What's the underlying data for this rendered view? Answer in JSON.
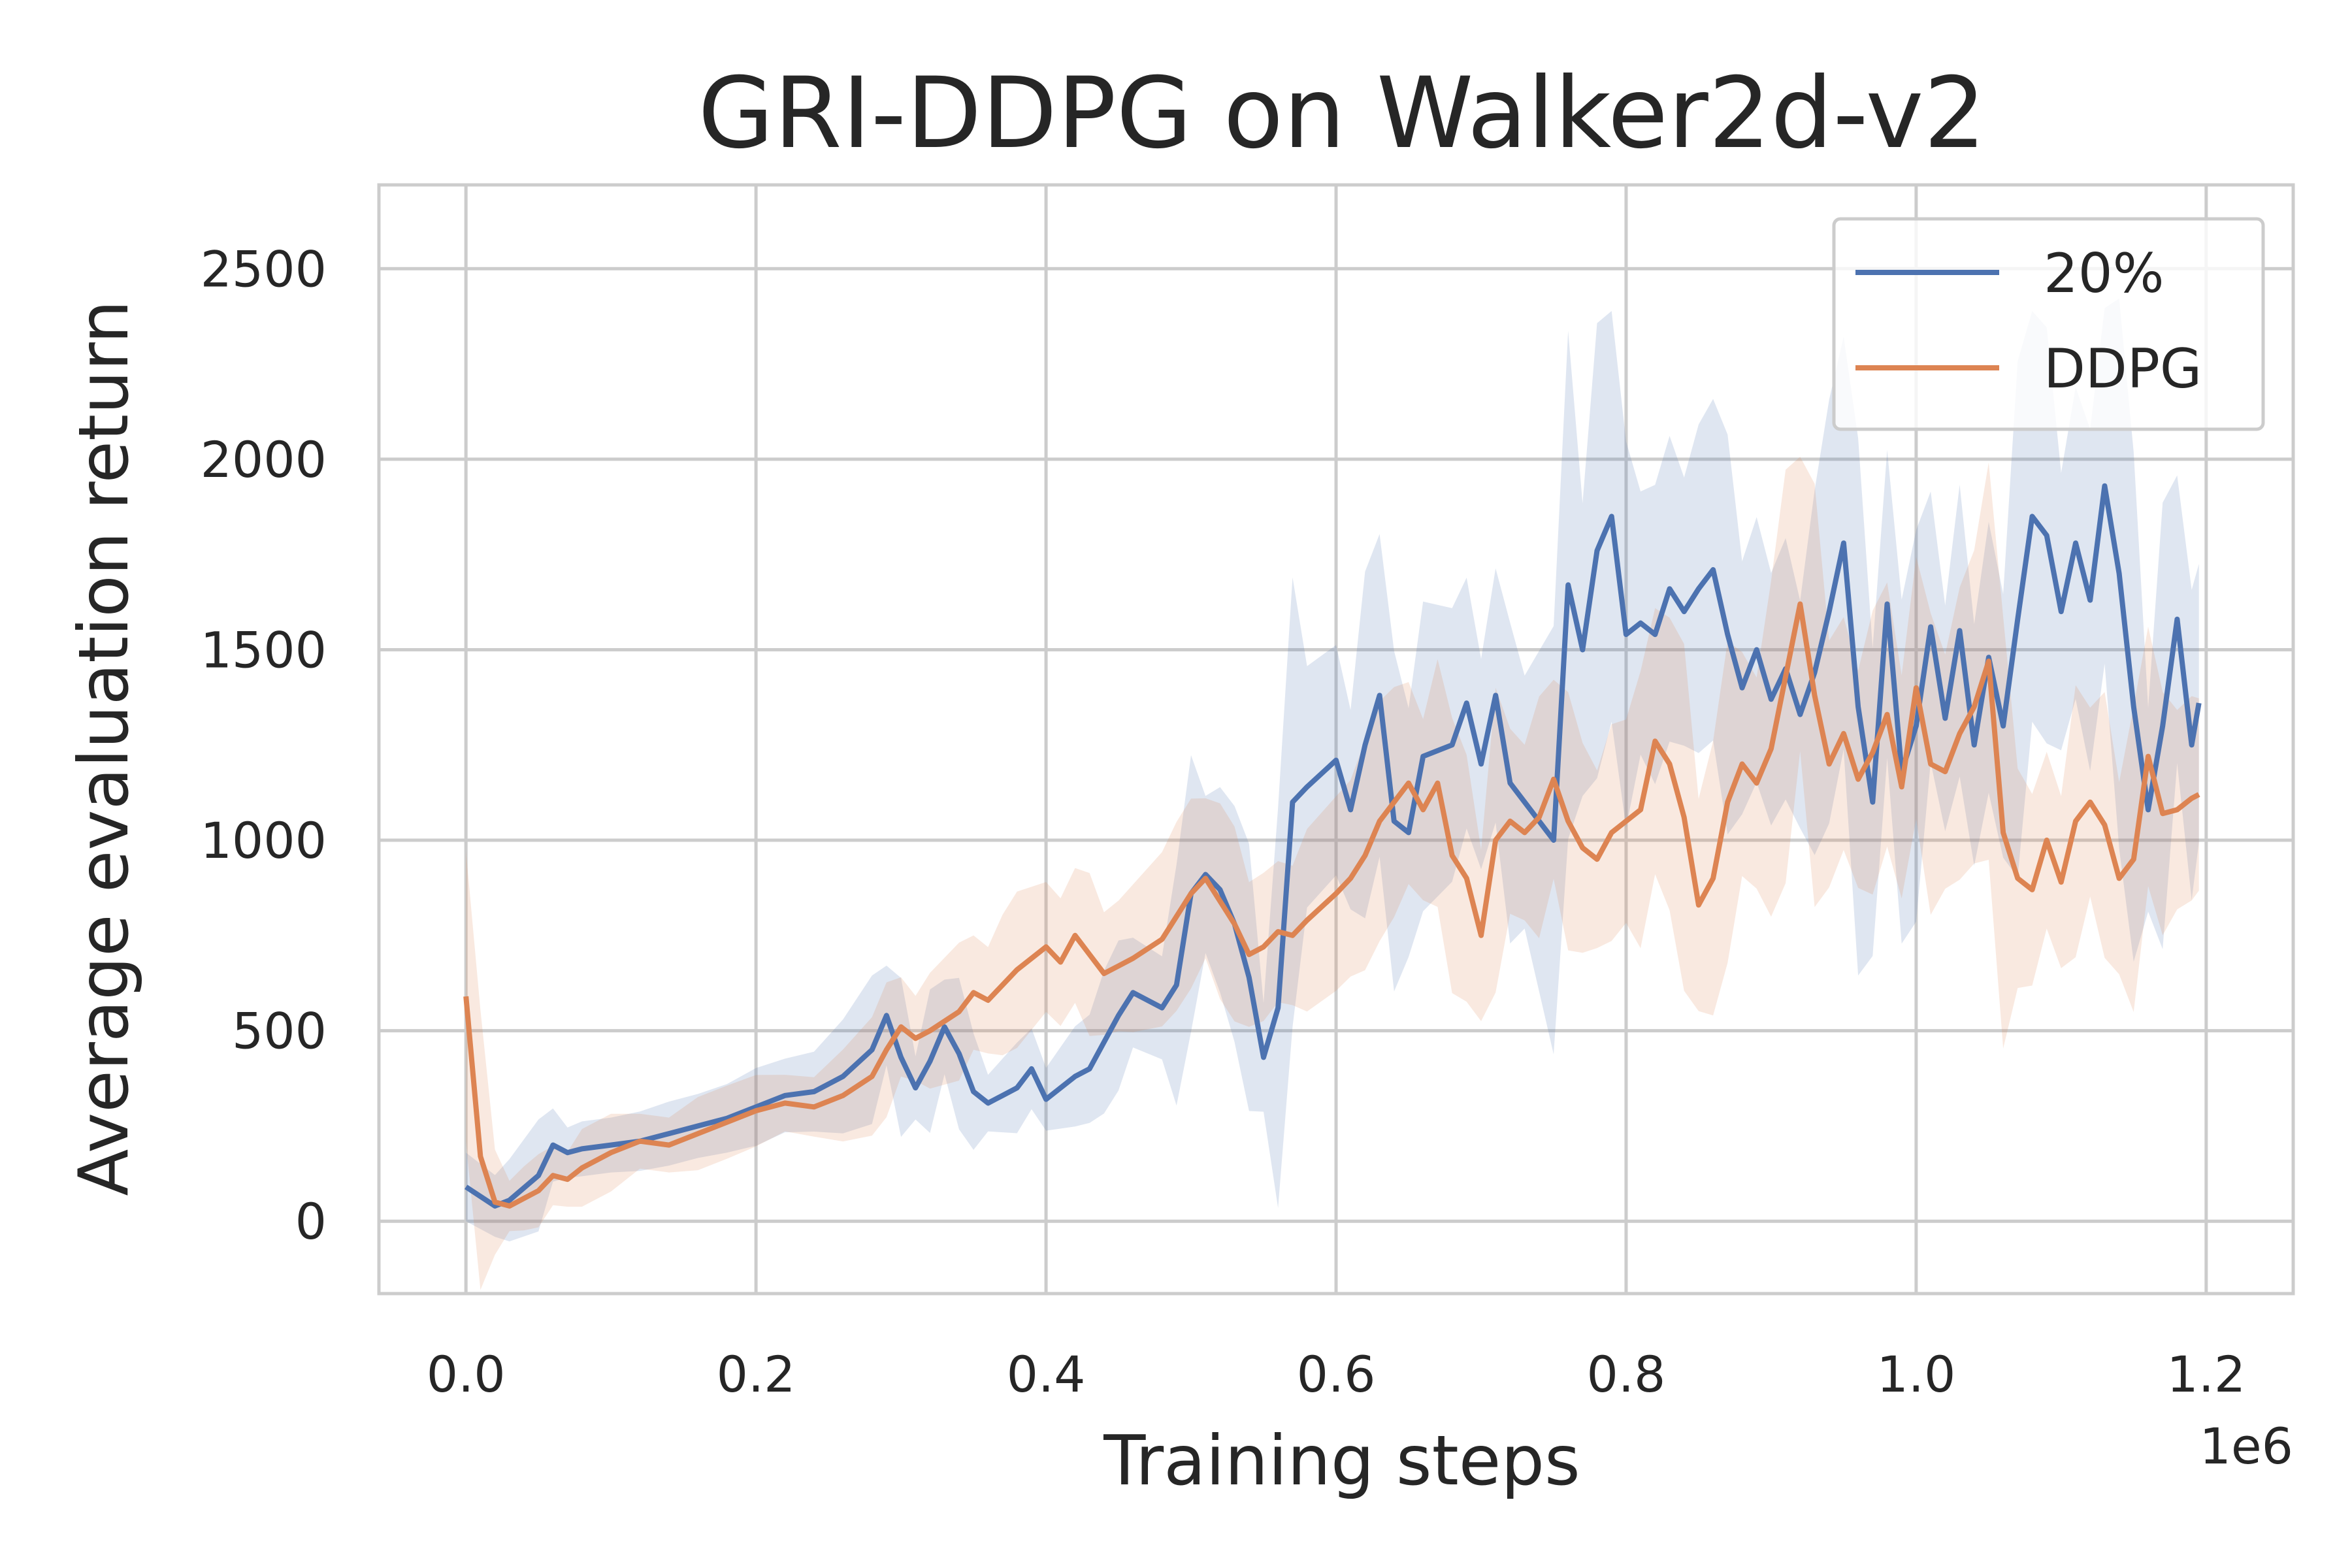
{
  "chart_data": {
    "type": "line",
    "title": "GRI-DDPG on Walker2d-v2",
    "xlabel": "Training steps",
    "ylabel": "Average evaluation return",
    "x_offset_label": "1e6",
    "xlim": [
      -0.06,
      1.26
    ],
    "ylim": [
      -190,
      2720
    ],
    "xticks": [
      0.0,
      0.2,
      0.4,
      0.6,
      0.8,
      1.0,
      1.2
    ],
    "xtick_labels": [
      "0.0",
      "0.2",
      "0.4",
      "0.6",
      "0.8",
      "1.0",
      "1.2"
    ],
    "yticks": [
      0,
      500,
      1000,
      1500,
      2000,
      2500
    ],
    "ytick_labels": [
      "0",
      "500",
      "1000",
      "1500",
      "2000",
      "2500"
    ],
    "grid": true,
    "legend_position": "top-right",
    "series": [
      {
        "name": "20%",
        "color": "#4c72b0",
        "band_alpha": 0.18,
        "x": [
          0.0,
          0.02,
          0.03,
          0.05,
          0.06,
          0.07,
          0.08,
          0.1,
          0.12,
          0.14,
          0.16,
          0.18,
          0.2,
          0.22,
          0.24,
          0.26,
          0.28,
          0.29,
          0.3,
          0.31,
          0.32,
          0.33,
          0.34,
          0.35,
          0.36,
          0.37,
          0.38,
          0.39,
          0.4,
          0.42,
          0.43,
          0.44,
          0.45,
          0.46,
          0.48,
          0.49,
          0.5,
          0.51,
          0.52,
          0.53,
          0.54,
          0.55,
          0.56,
          0.57,
          0.58,
          0.6,
          0.61,
          0.62,
          0.63,
          0.64,
          0.65,
          0.66,
          0.68,
          0.69,
          0.7,
          0.71,
          0.72,
          0.73,
          0.75,
          0.76,
          0.77,
          0.78,
          0.79,
          0.8,
          0.81,
          0.82,
          0.83,
          0.84,
          0.85,
          0.86,
          0.87,
          0.88,
          0.89,
          0.9,
          0.91,
          0.92,
          0.93,
          0.94,
          0.95,
          0.96,
          0.97,
          0.98,
          0.99,
          1.0,
          1.01,
          1.02,
          1.03,
          1.04,
          1.05,
          1.06,
          1.07,
          1.08,
          1.09,
          1.1,
          1.11,
          1.12,
          1.13,
          1.14,
          1.15,
          1.16,
          1.17,
          1.18,
          1.19,
          1.195
        ],
        "y": [
          90,
          40,
          55,
          120,
          200,
          180,
          190,
          200,
          210,
          230,
          250,
          270,
          300,
          330,
          340,
          380,
          450,
          540,
          430,
          350,
          420,
          510,
          440,
          340,
          310,
          330,
          350,
          400,
          320,
          380,
          400,
          470,
          540,
          600,
          560,
          620,
          860,
          910,
          870,
          780,
          640,
          430,
          560,
          1100,
          1140,
          1210,
          1080,
          1250,
          1380,
          1050,
          1020,
          1220,
          1250,
          1360,
          1200,
          1380,
          1150,
          1100,
          1000,
          1670,
          1500,
          1760,
          1850,
          1540,
          1570,
          1540,
          1660,
          1600,
          1660,
          1710,
          1540,
          1400,
          1500,
          1370,
          1450,
          1330,
          1440,
          1600,
          1780,
          1350,
          1100,
          1620,
          1180,
          1300,
          1560,
          1320,
          1550,
          1250,
          1480,
          1300,
          1580,
          1850,
          1800,
          1600,
          1780,
          1630,
          1930,
          1700,
          1350,
          1080,
          1300,
          1580,
          1250,
          1360
        ]
      },
      {
        "name": "DDPG",
        "color": "#dd8452",
        "band_alpha": 0.18,
        "x": [
          0.0,
          0.01,
          0.02,
          0.03,
          0.04,
          0.05,
          0.06,
          0.07,
          0.08,
          0.1,
          0.12,
          0.14,
          0.16,
          0.18,
          0.2,
          0.22,
          0.24,
          0.26,
          0.28,
          0.29,
          0.3,
          0.31,
          0.32,
          0.34,
          0.35,
          0.36,
          0.37,
          0.38,
          0.4,
          0.41,
          0.42,
          0.43,
          0.44,
          0.45,
          0.46,
          0.48,
          0.49,
          0.5,
          0.51,
          0.52,
          0.53,
          0.54,
          0.55,
          0.56,
          0.57,
          0.58,
          0.6,
          0.61,
          0.62,
          0.63,
          0.64,
          0.65,
          0.66,
          0.67,
          0.68,
          0.69,
          0.7,
          0.71,
          0.72,
          0.73,
          0.74,
          0.75,
          0.76,
          0.77,
          0.78,
          0.79,
          0.8,
          0.81,
          0.82,
          0.83,
          0.84,
          0.85,
          0.86,
          0.87,
          0.88,
          0.89,
          0.9,
          0.91,
          0.92,
          0.93,
          0.94,
          0.95,
          0.96,
          0.97,
          0.98,
          0.99,
          1.0,
          1.01,
          1.02,
          1.03,
          1.04,
          1.05,
          1.06,
          1.07,
          1.08,
          1.09,
          1.1,
          1.11,
          1.12,
          1.13,
          1.14,
          1.15,
          1.16,
          1.17,
          1.18,
          1.19,
          1.195
        ],
        "y": [
          590,
          170,
          50,
          40,
          60,
          80,
          120,
          110,
          140,
          180,
          210,
          200,
          230,
          260,
          290,
          310,
          300,
          330,
          380,
          450,
          510,
          480,
          500,
          550,
          600,
          580,
          620,
          660,
          720,
          680,
          750,
          700,
          650,
          670,
          690,
          740,
          800,
          860,
          900,
          840,
          780,
          700,
          720,
          760,
          750,
          790,
          860,
          900,
          960,
          1050,
          1100,
          1150,
          1080,
          1150,
          960,
          900,
          750,
          1000,
          1050,
          1020,
          1060,
          1160,
          1050,
          980,
          950,
          1020,
          1050,
          1080,
          1260,
          1200,
          1060,
          830,
          900,
          1100,
          1200,
          1150,
          1240,
          1430,
          1620,
          1380,
          1200,
          1280,
          1160,
          1230,
          1330,
          1140,
          1400,
          1200,
          1180,
          1280,
          1350,
          1470,
          1020,
          900,
          870,
          1000,
          890,
          1050,
          1100,
          1040,
          900,
          950,
          1220,
          1070,
          1080,
          1110,
          1120
        ]
      }
    ]
  }
}
